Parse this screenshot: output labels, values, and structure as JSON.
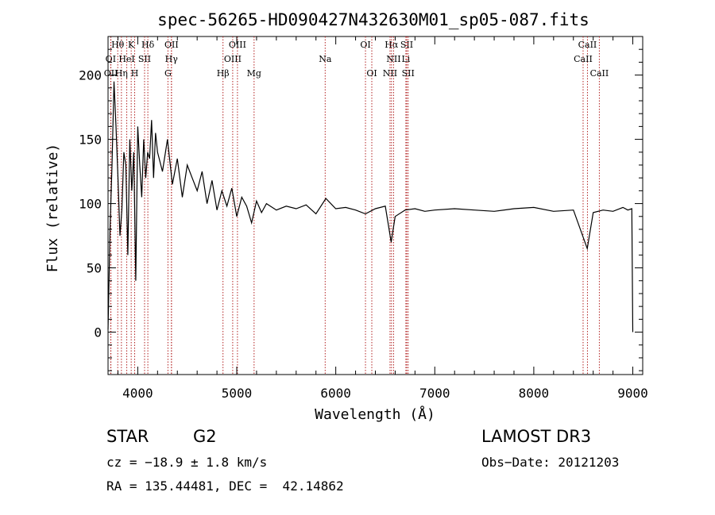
{
  "chart_data": {
    "type": "line",
    "title": "spec-56265-HD090427N432630M01_sp05-087.fits",
    "xlabel": "Wavelength (Å)",
    "ylabel": "Flux (relative)",
    "xlim": [
      3700,
      9100
    ],
    "ylim": [
      -33,
      230
    ],
    "xticks": [
      4000,
      5000,
      6000,
      7000,
      8000,
      9000
    ],
    "yticks": [
      0,
      50,
      100,
      150,
      200
    ],
    "grid": false,
    "line_color": "#000000",
    "marker_color": "#b22222",
    "series": [
      {
        "x": [
          3700,
          3720,
          3740,
          3760,
          3780,
          3800,
          3820,
          3840,
          3860,
          3880,
          3900,
          3920,
          3940,
          3960,
          3980,
          4000,
          4020,
          4040,
          4060,
          4080,
          4100,
          4120,
          4140,
          4160,
          4180,
          4200,
          4250,
          4300,
          4350,
          4400,
          4450,
          4500,
          4550,
          4600,
          4650,
          4700,
          4750,
          4800,
          4850,
          4900,
          4950,
          5000,
          5050,
          5100,
          5150,
          5200,
          5250,
          5300,
          5400,
          5500,
          5600,
          5700,
          5800,
          5900,
          6000,
          6100,
          6200,
          6300,
          6400,
          6500,
          6560,
          6600,
          6700,
          6800,
          6900,
          7000,
          7200,
          7400,
          7600,
          7800,
          8000,
          8200,
          8400,
          8540,
          8600,
          8700,
          8800,
          8900,
          8950,
          8990,
          9000
        ],
        "y": [
          2,
          80,
          130,
          195,
          160,
          120,
          75,
          95,
          140,
          130,
          60,
          150,
          110,
          140,
          40,
          160,
          130,
          105,
          150,
          120,
          140,
          135,
          165,
          120,
          155,
          140,
          125,
          150,
          115,
          135,
          105,
          130,
          120,
          110,
          125,
          100,
          118,
          95,
          110,
          98,
          112,
          90,
          105,
          98,
          85,
          102,
          93,
          100,
          95,
          98,
          96,
          99,
          92,
          104,
          96,
          97,
          95,
          92,
          96,
          98,
          70,
          90,
          95,
          96,
          94,
          95,
          96,
          95,
          94,
          96,
          97,
          94,
          95,
          65,
          93,
          95,
          94,
          97,
          95,
          96,
          0
        ]
      }
    ],
    "spectral_lines": [
      {
        "label": "Hθ",
        "x": 3798,
        "row": 0
      },
      {
        "label": "K",
        "x": 3934,
        "row": 0
      },
      {
        "label": "Hδ",
        "x": 4102,
        "row": 0
      },
      {
        "label": "OII",
        "x": 4341,
        "row": 0
      },
      {
        "label": "OIII",
        "x": 5007,
        "row": 0
      },
      {
        "label": "OI",
        "x": 6300,
        "row": 0
      },
      {
        "label": "Hα",
        "x": 6563,
        "row": 0
      },
      {
        "label": "SII",
        "x": 6717,
        "row": 0
      },
      {
        "label": "CaII",
        "x": 8542,
        "row": 0
      },
      {
        "label": "OI",
        "x": 3727,
        "row": 1
      },
      {
        "label": "HeI",
        "x": 3889,
        "row": 1
      },
      {
        "label": "SII",
        "x": 4069,
        "row": 1
      },
      {
        "label": "Hγ",
        "x": 4340,
        "row": 1
      },
      {
        "label": "OIII",
        "x": 4959,
        "row": 1
      },
      {
        "label": "Na",
        "x": 5893,
        "row": 1
      },
      {
        "label": "NII",
        "x": 6584,
        "row": 1
      },
      {
        "label": "Li",
        "x": 6708,
        "row": 1
      },
      {
        "label": "CaII",
        "x": 8498,
        "row": 1
      },
      {
        "label": "OII",
        "x": 3729,
        "row": 2
      },
      {
        "label": "Hη",
        "x": 3835,
        "row": 2
      },
      {
        "label": "H",
        "x": 3969,
        "row": 2
      },
      {
        "label": "G",
        "x": 4305,
        "row": 2
      },
      {
        "label": "Hβ",
        "x": 4861,
        "row": 2
      },
      {
        "label": "Mg",
        "x": 5175,
        "row": 2
      },
      {
        "label": "OI",
        "x": 6364,
        "row": 2
      },
      {
        "label": "NII",
        "x": 6548,
        "row": 2
      },
      {
        "label": "SII",
        "x": 6731,
        "row": 2
      },
      {
        "label": "CaII",
        "x": 8662,
        "row": 2
      }
    ]
  },
  "info": {
    "object_class": "STAR",
    "subclass": "G2",
    "survey": "LAMOST DR3",
    "redshift": "cz = −18.9 ± 1.8 km/s",
    "obs_date": "Obs−Date: 20121203",
    "coords": "RA = 135.44481, DEC =  42.14862"
  }
}
